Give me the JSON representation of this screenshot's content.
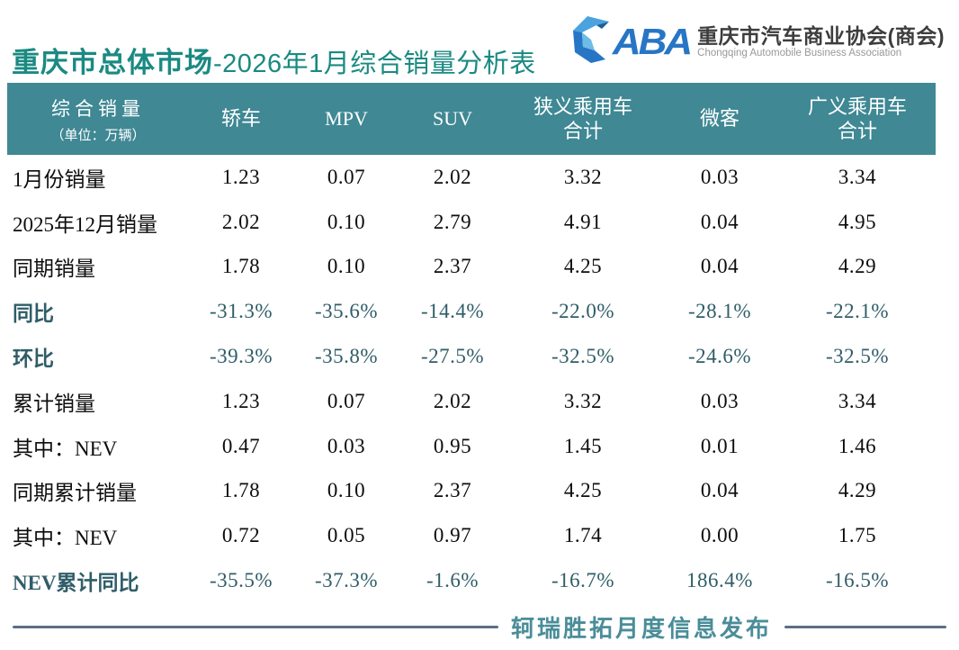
{
  "page": {
    "title_bold": "重庆市总体市场",
    "title_rest": "-2026年1月综合销量分析表"
  },
  "logo": {
    "acronym_rest": "ABA",
    "name_cn": "重庆市汽车商业协会(商会)",
    "name_en": "Chongqing Automobile Business Association"
  },
  "chart_data": {
    "type": "table",
    "title": "重庆市总体市场-2026年1月综合销量分析表",
    "corner_header": "综合销量",
    "corner_subtitle": "（单位：万辆）",
    "unit": "万辆",
    "columns": [
      "轿车",
      "MPV",
      "SUV",
      "狭义乘用车\n合计",
      "微客",
      "广义乘用车\n合计"
    ],
    "rows": [
      {
        "label": "1月份销量",
        "values": [
          "1.23",
          "0.07",
          "2.02",
          "3.32",
          "0.03",
          "3.34"
        ],
        "emphasis": false
      },
      {
        "label": "2025年12月销量",
        "values": [
          "2.02",
          "0.10",
          "2.79",
          "4.91",
          "0.04",
          "4.95"
        ],
        "emphasis": false
      },
      {
        "label": "同期销量",
        "values": [
          "1.78",
          "0.10",
          "2.37",
          "4.25",
          "0.04",
          "4.29"
        ],
        "emphasis": false
      },
      {
        "label": "同比",
        "values": [
          "-31.3%",
          "-35.6%",
          "-14.4%",
          "-22.0%",
          "-28.1%",
          "-22.1%"
        ],
        "emphasis": true
      },
      {
        "label": "环比",
        "values": [
          "-39.3%",
          "-35.8%",
          "-27.5%",
          "-32.5%",
          "-24.6%",
          "-32.5%"
        ],
        "emphasis": true
      },
      {
        "label": "累计销量",
        "values": [
          "1.23",
          "0.07",
          "2.02",
          "3.32",
          "0.03",
          "3.34"
        ],
        "emphasis": false
      },
      {
        "label": "其中：NEV",
        "values": [
          "0.47",
          "0.03",
          "0.95",
          "1.45",
          "0.01",
          "1.46"
        ],
        "emphasis": false
      },
      {
        "label": "同期累计销量",
        "values": [
          "1.78",
          "0.10",
          "2.37",
          "4.25",
          "0.04",
          "4.29"
        ],
        "emphasis": false
      },
      {
        "label": "其中：NEV",
        "values": [
          "0.72",
          "0.05",
          "0.97",
          "1.74",
          "0.00",
          "1.75"
        ],
        "emphasis": false
      },
      {
        "label": "NEV累计同比",
        "values": [
          "-35.5%",
          "-37.3%",
          "-1.6%",
          "-16.7%",
          "186.4%",
          "-16.5%"
        ],
        "emphasis": true
      }
    ]
  },
  "footer": {
    "text": "轲瑞胜拓月度信息发布"
  },
  "colors": {
    "header_bg": "#3f8894",
    "title_teal": "#1a8a82",
    "emphasis_teal": "#2f5d68",
    "logo_blue": "#2776c5",
    "footer_text": "#4a8d99",
    "footer_line": "#5a7085"
  }
}
